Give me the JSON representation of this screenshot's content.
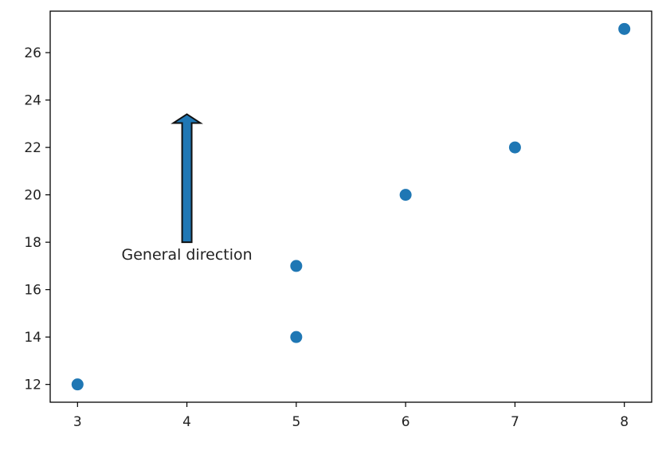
{
  "chart_data": {
    "type": "scatter",
    "title": "",
    "xlabel": "",
    "ylabel": "",
    "xlim": [
      2.75,
      8.25
    ],
    "ylim": [
      11.25,
      27.75
    ],
    "x_ticks": [
      3,
      4,
      5,
      6,
      7,
      8
    ],
    "y_ticks": [
      12,
      14,
      16,
      18,
      20,
      22,
      24,
      26
    ],
    "grid": false,
    "series": [
      {
        "x": [
          3,
          5,
          5,
          6,
          7,
          8
        ],
        "y": [
          12,
          14,
          17,
          20,
          22,
          27
        ],
        "color": "#1f77b4"
      }
    ],
    "annotations": [
      {
        "text": "General direction",
        "text_at": [
          4,
          17.5
        ],
        "arrow_from": [
          4,
          18
        ],
        "arrow_to": [
          4,
          23.4
        ],
        "arrow_fill": "#1f77b4",
        "arrow_edge": "#111111"
      }
    ]
  }
}
